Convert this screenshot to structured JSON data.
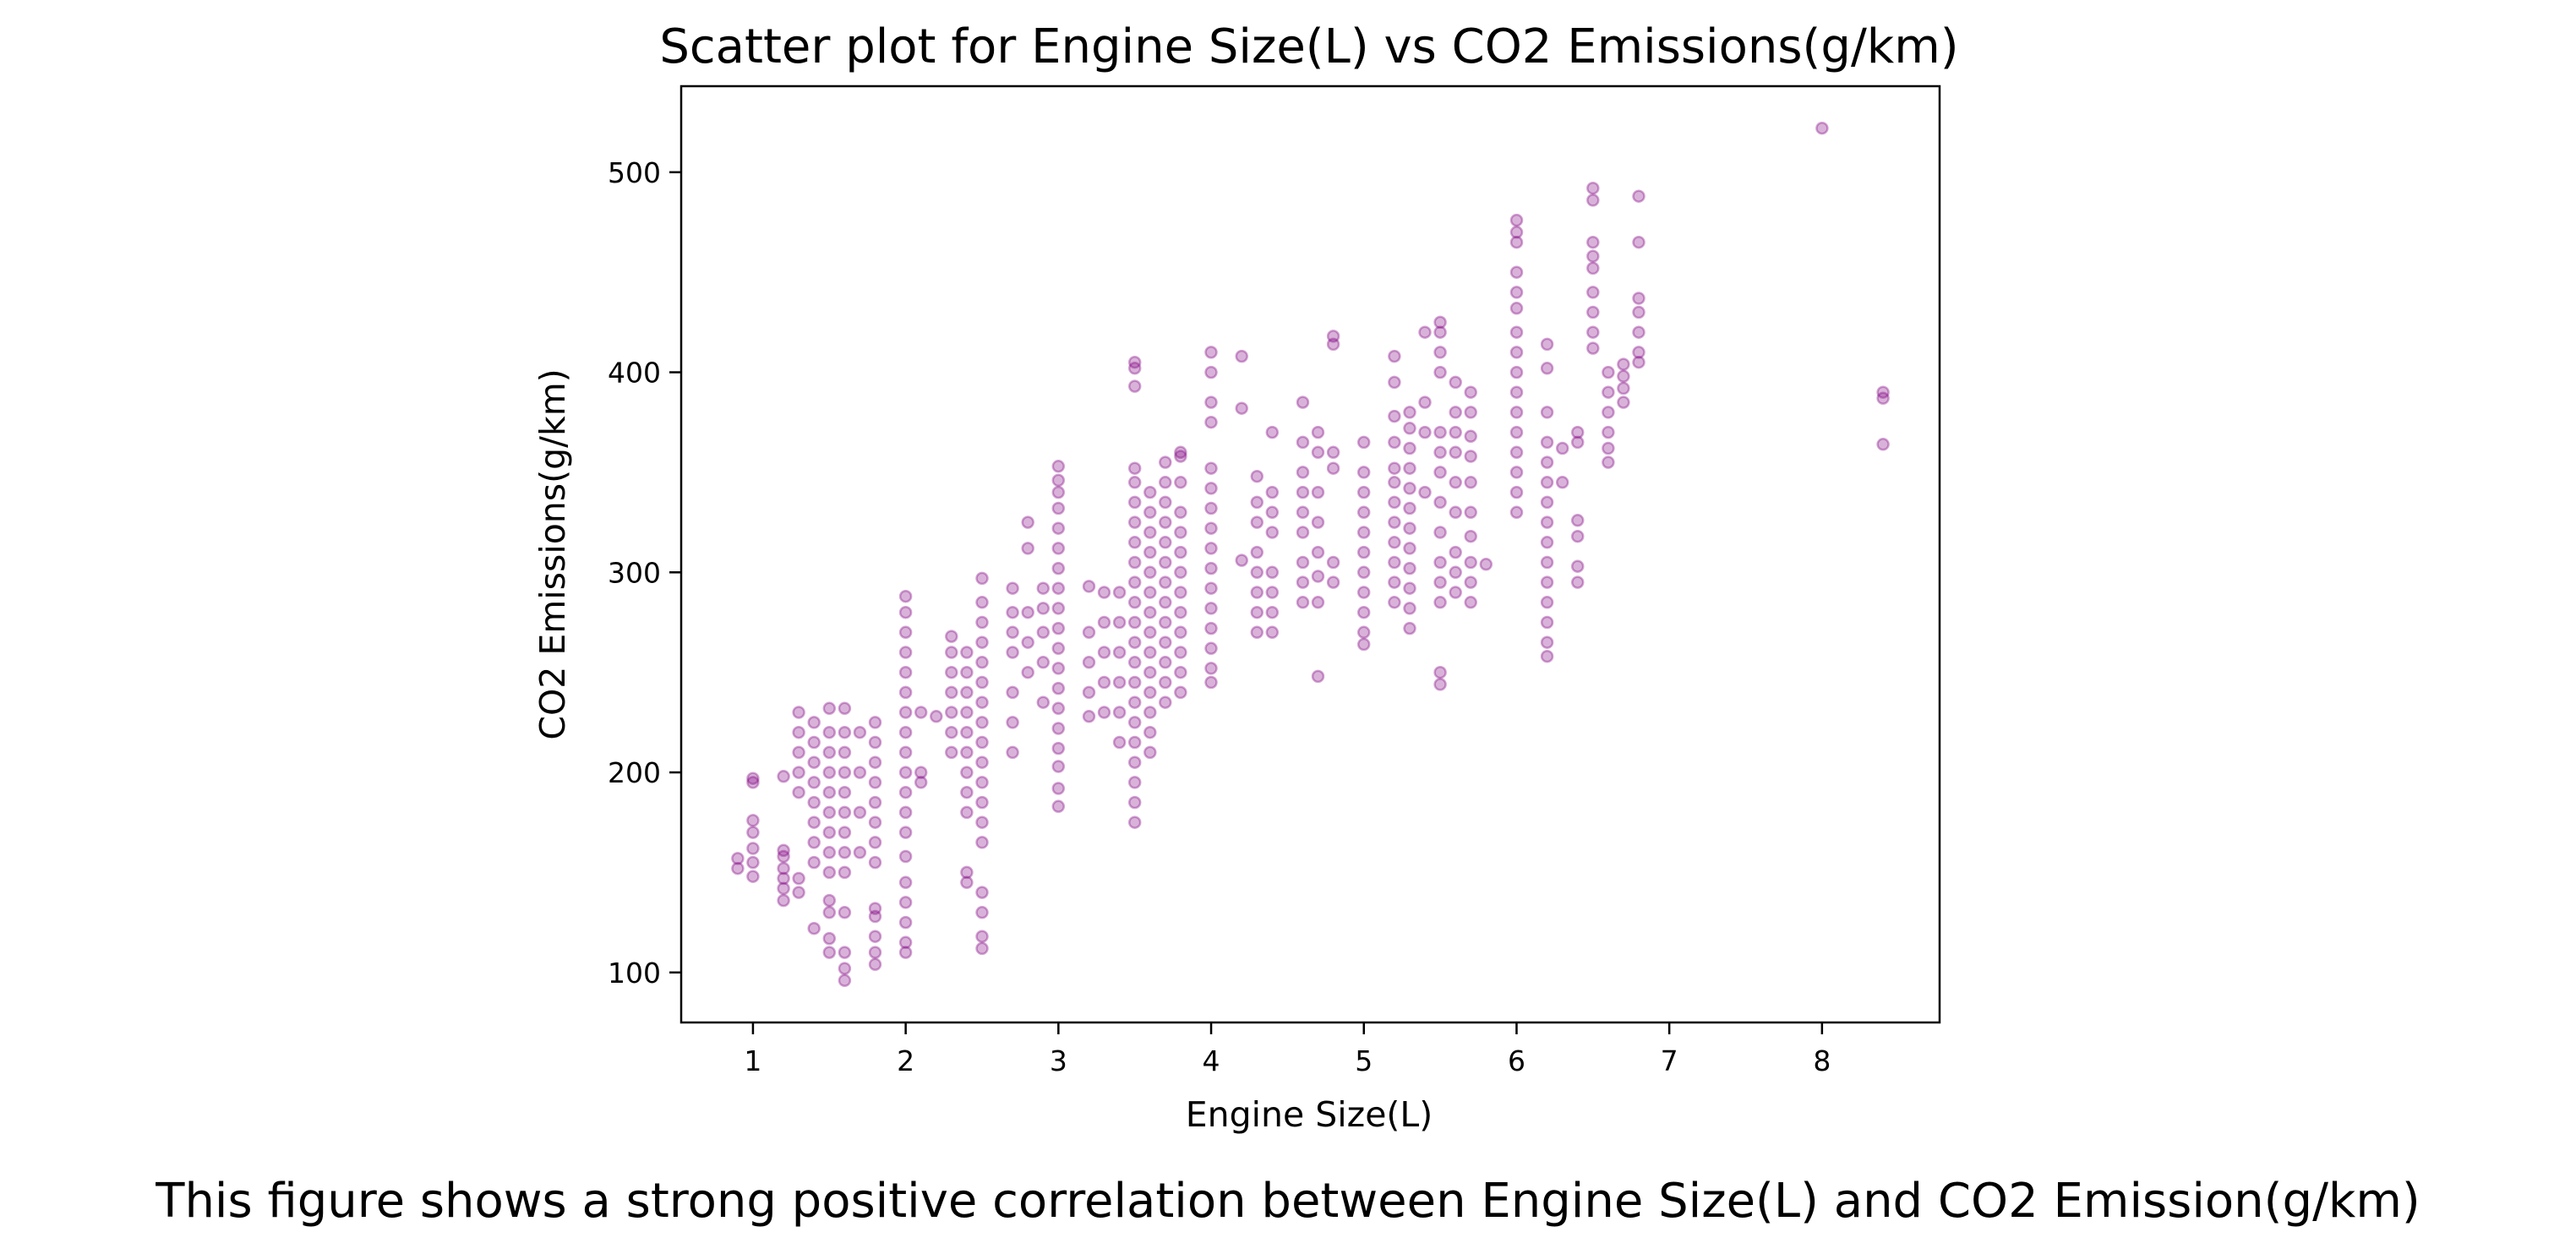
{
  "chart_data": {
    "type": "scatter",
    "title": "Scatter plot for Engine Size(L) vs CO2 Emissions(g/km)",
    "xlabel": "Engine Size(L)",
    "ylabel": "CO2 Emissions(g/km)",
    "caption": "This figure shows a strong positive correlation between Engine Size(L) and CO2 Emission(g/km)",
    "xlim": [
      0.53,
      8.77
    ],
    "ylim": [
      75,
      543
    ],
    "xticks": [
      1,
      2,
      3,
      4,
      5,
      6,
      7,
      8
    ],
    "yticks": [
      100,
      200,
      300,
      400,
      500
    ],
    "marker_color": "#800080",
    "marker_alpha": 0.35,
    "grid": false,
    "points": [
      [
        0.9,
        152
      ],
      [
        0.9,
        157
      ],
      [
        1.0,
        148
      ],
      [
        1.0,
        155
      ],
      [
        1.0,
        162
      ],
      [
        1.0,
        170
      ],
      [
        1.0,
        176
      ],
      [
        1.0,
        195
      ],
      [
        1.0,
        197
      ],
      [
        1.2,
        136
      ],
      [
        1.2,
        142
      ],
      [
        1.2,
        147
      ],
      [
        1.2,
        152
      ],
      [
        1.2,
        158
      ],
      [
        1.2,
        161
      ],
      [
        1.2,
        198
      ],
      [
        1.3,
        140
      ],
      [
        1.3,
        147
      ],
      [
        1.3,
        190
      ],
      [
        1.3,
        200
      ],
      [
        1.3,
        210
      ],
      [
        1.3,
        220
      ],
      [
        1.3,
        230
      ],
      [
        1.4,
        122
      ],
      [
        1.4,
        155
      ],
      [
        1.4,
        165
      ],
      [
        1.4,
        175
      ],
      [
        1.4,
        185
      ],
      [
        1.4,
        195
      ],
      [
        1.4,
        205
      ],
      [
        1.4,
        215
      ],
      [
        1.4,
        225
      ],
      [
        1.5,
        110
      ],
      [
        1.5,
        117
      ],
      [
        1.5,
        130
      ],
      [
        1.5,
        136
      ],
      [
        1.5,
        150
      ],
      [
        1.5,
        160
      ],
      [
        1.5,
        170
      ],
      [
        1.5,
        180
      ],
      [
        1.5,
        190
      ],
      [
        1.5,
        200
      ],
      [
        1.5,
        210
      ],
      [
        1.5,
        220
      ],
      [
        1.5,
        232
      ],
      [
        1.6,
        96
      ],
      [
        1.6,
        102
      ],
      [
        1.6,
        110
      ],
      [
        1.6,
        130
      ],
      [
        1.6,
        150
      ],
      [
        1.6,
        160
      ],
      [
        1.6,
        170
      ],
      [
        1.6,
        180
      ],
      [
        1.6,
        190
      ],
      [
        1.6,
        200
      ],
      [
        1.6,
        210
      ],
      [
        1.6,
        220
      ],
      [
        1.6,
        232
      ],
      [
        1.7,
        160
      ],
      [
        1.7,
        180
      ],
      [
        1.7,
        200
      ],
      [
        1.7,
        220
      ],
      [
        1.8,
        104
      ],
      [
        1.8,
        110
      ],
      [
        1.8,
        118
      ],
      [
        1.8,
        128
      ],
      [
        1.8,
        132
      ],
      [
        1.8,
        155
      ],
      [
        1.8,
        165
      ],
      [
        1.8,
        175
      ],
      [
        1.8,
        185
      ],
      [
        1.8,
        195
      ],
      [
        1.8,
        205
      ],
      [
        1.8,
        215
      ],
      [
        1.8,
        225
      ],
      [
        2.0,
        110
      ],
      [
        2.0,
        115
      ],
      [
        2.0,
        125
      ],
      [
        2.0,
        135
      ],
      [
        2.0,
        145
      ],
      [
        2.0,
        158
      ],
      [
        2.0,
        170
      ],
      [
        2.0,
        180
      ],
      [
        2.0,
        190
      ],
      [
        2.0,
        200
      ],
      [
        2.0,
        210
      ],
      [
        2.0,
        220
      ],
      [
        2.0,
        230
      ],
      [
        2.0,
        240
      ],
      [
        2.0,
        250
      ],
      [
        2.0,
        260
      ],
      [
        2.0,
        270
      ],
      [
        2.0,
        280
      ],
      [
        2.0,
        288
      ],
      [
        2.1,
        195
      ],
      [
        2.1,
        200
      ],
      [
        2.1,
        230
      ],
      [
        2.2,
        228
      ],
      [
        2.3,
        210
      ],
      [
        2.3,
        220
      ],
      [
        2.3,
        230
      ],
      [
        2.3,
        240
      ],
      [
        2.3,
        250
      ],
      [
        2.3,
        260
      ],
      [
        2.3,
        268
      ],
      [
        2.4,
        145
      ],
      [
        2.4,
        150
      ],
      [
        2.4,
        180
      ],
      [
        2.4,
        190
      ],
      [
        2.4,
        200
      ],
      [
        2.4,
        210
      ],
      [
        2.4,
        220
      ],
      [
        2.4,
        230
      ],
      [
        2.4,
        240
      ],
      [
        2.4,
        250
      ],
      [
        2.4,
        260
      ],
      [
        2.5,
        112
      ],
      [
        2.5,
        118
      ],
      [
        2.5,
        130
      ],
      [
        2.5,
        140
      ],
      [
        2.5,
        165
      ],
      [
        2.5,
        175
      ],
      [
        2.5,
        185
      ],
      [
        2.5,
        195
      ],
      [
        2.5,
        205
      ],
      [
        2.5,
        215
      ],
      [
        2.5,
        225
      ],
      [
        2.5,
        235
      ],
      [
        2.5,
        245
      ],
      [
        2.5,
        255
      ],
      [
        2.5,
        265
      ],
      [
        2.5,
        275
      ],
      [
        2.5,
        285
      ],
      [
        2.5,
        297
      ],
      [
        2.7,
        210
      ],
      [
        2.7,
        225
      ],
      [
        2.7,
        240
      ],
      [
        2.7,
        260
      ],
      [
        2.7,
        270
      ],
      [
        2.7,
        280
      ],
      [
        2.7,
        292
      ],
      [
        2.8,
        250
      ],
      [
        2.8,
        265
      ],
      [
        2.8,
        280
      ],
      [
        2.8,
        312
      ],
      [
        2.8,
        325
      ],
      [
        2.9,
        235
      ],
      [
        2.9,
        255
      ],
      [
        2.9,
        270
      ],
      [
        2.9,
        282
      ],
      [
        2.9,
        292
      ],
      [
        3.0,
        183
      ],
      [
        3.0,
        192
      ],
      [
        3.0,
        203
      ],
      [
        3.0,
        212
      ],
      [
        3.0,
        222
      ],
      [
        3.0,
        232
      ],
      [
        3.0,
        242
      ],
      [
        3.0,
        252
      ],
      [
        3.0,
        262
      ],
      [
        3.0,
        272
      ],
      [
        3.0,
        282
      ],
      [
        3.0,
        292
      ],
      [
        3.0,
        302
      ],
      [
        3.0,
        312
      ],
      [
        3.0,
        322
      ],
      [
        3.0,
        332
      ],
      [
        3.0,
        340
      ],
      [
        3.0,
        346
      ],
      [
        3.0,
        353
      ],
      [
        3.2,
        228
      ],
      [
        3.2,
        240
      ],
      [
        3.2,
        255
      ],
      [
        3.2,
        270
      ],
      [
        3.2,
        293
      ],
      [
        3.3,
        230
      ],
      [
        3.3,
        245
      ],
      [
        3.3,
        260
      ],
      [
        3.3,
        275
      ],
      [
        3.3,
        290
      ],
      [
        3.4,
        215
      ],
      [
        3.4,
        230
      ],
      [
        3.4,
        245
      ],
      [
        3.4,
        260
      ],
      [
        3.4,
        275
      ],
      [
        3.4,
        290
      ],
      [
        3.5,
        175
      ],
      [
        3.5,
        185
      ],
      [
        3.5,
        195
      ],
      [
        3.5,
        205
      ],
      [
        3.5,
        215
      ],
      [
        3.5,
        225
      ],
      [
        3.5,
        235
      ],
      [
        3.5,
        245
      ],
      [
        3.5,
        255
      ],
      [
        3.5,
        265
      ],
      [
        3.5,
        275
      ],
      [
        3.5,
        285
      ],
      [
        3.5,
        295
      ],
      [
        3.5,
        305
      ],
      [
        3.5,
        315
      ],
      [
        3.5,
        325
      ],
      [
        3.5,
        335
      ],
      [
        3.5,
        345
      ],
      [
        3.5,
        352
      ],
      [
        3.5,
        393
      ],
      [
        3.5,
        402
      ],
      [
        3.5,
        405
      ],
      [
        3.6,
        210
      ],
      [
        3.6,
        220
      ],
      [
        3.6,
        230
      ],
      [
        3.6,
        240
      ],
      [
        3.6,
        250
      ],
      [
        3.6,
        260
      ],
      [
        3.6,
        270
      ],
      [
        3.6,
        280
      ],
      [
        3.6,
        290
      ],
      [
        3.6,
        300
      ],
      [
        3.6,
        310
      ],
      [
        3.6,
        320
      ],
      [
        3.6,
        330
      ],
      [
        3.6,
        340
      ],
      [
        3.7,
        235
      ],
      [
        3.7,
        245
      ],
      [
        3.7,
        255
      ],
      [
        3.7,
        265
      ],
      [
        3.7,
        275
      ],
      [
        3.7,
        285
      ],
      [
        3.7,
        295
      ],
      [
        3.7,
        305
      ],
      [
        3.7,
        315
      ],
      [
        3.7,
        325
      ],
      [
        3.7,
        335
      ],
      [
        3.7,
        345
      ],
      [
        3.7,
        355
      ],
      [
        3.8,
        240
      ],
      [
        3.8,
        250
      ],
      [
        3.8,
        260
      ],
      [
        3.8,
        270
      ],
      [
        3.8,
        280
      ],
      [
        3.8,
        290
      ],
      [
        3.8,
        300
      ],
      [
        3.8,
        310
      ],
      [
        3.8,
        320
      ],
      [
        3.8,
        330
      ],
      [
        3.8,
        345
      ],
      [
        3.8,
        358
      ],
      [
        3.8,
        360
      ],
      [
        4.0,
        245
      ],
      [
        4.0,
        252
      ],
      [
        4.0,
        262
      ],
      [
        4.0,
        272
      ],
      [
        4.0,
        282
      ],
      [
        4.0,
        292
      ],
      [
        4.0,
        302
      ],
      [
        4.0,
        312
      ],
      [
        4.0,
        322
      ],
      [
        4.0,
        332
      ],
      [
        4.0,
        342
      ],
      [
        4.0,
        352
      ],
      [
        4.0,
        375
      ],
      [
        4.0,
        385
      ],
      [
        4.0,
        400
      ],
      [
        4.0,
        410
      ],
      [
        4.2,
        306
      ],
      [
        4.2,
        382
      ],
      [
        4.2,
        408
      ],
      [
        4.3,
        270
      ],
      [
        4.3,
        280
      ],
      [
        4.3,
        290
      ],
      [
        4.3,
        300
      ],
      [
        4.3,
        310
      ],
      [
        4.3,
        325
      ],
      [
        4.3,
        335
      ],
      [
        4.3,
        348
      ],
      [
        4.4,
        270
      ],
      [
        4.4,
        280
      ],
      [
        4.4,
        290
      ],
      [
        4.4,
        300
      ],
      [
        4.4,
        320
      ],
      [
        4.4,
        330
      ],
      [
        4.4,
        340
      ],
      [
        4.4,
        370
      ],
      [
        4.6,
        285
      ],
      [
        4.6,
        295
      ],
      [
        4.6,
        305
      ],
      [
        4.6,
        320
      ],
      [
        4.6,
        330
      ],
      [
        4.6,
        340
      ],
      [
        4.6,
        350
      ],
      [
        4.6,
        365
      ],
      [
        4.6,
        385
      ],
      [
        4.7,
        248
      ],
      [
        4.7,
        285
      ],
      [
        4.7,
        298
      ],
      [
        4.7,
        310
      ],
      [
        4.7,
        325
      ],
      [
        4.7,
        340
      ],
      [
        4.7,
        360
      ],
      [
        4.7,
        370
      ],
      [
        4.8,
        295
      ],
      [
        4.8,
        305
      ],
      [
        4.8,
        352
      ],
      [
        4.8,
        360
      ],
      [
        4.8,
        414
      ],
      [
        4.8,
        418
      ],
      [
        5.0,
        264
      ],
      [
        5.0,
        270
      ],
      [
        5.0,
        280
      ],
      [
        5.0,
        290
      ],
      [
        5.0,
        300
      ],
      [
        5.0,
        310
      ],
      [
        5.0,
        320
      ],
      [
        5.0,
        330
      ],
      [
        5.0,
        340
      ],
      [
        5.0,
        350
      ],
      [
        5.0,
        365
      ],
      [
        5.2,
        285
      ],
      [
        5.2,
        295
      ],
      [
        5.2,
        305
      ],
      [
        5.2,
        315
      ],
      [
        5.2,
        325
      ],
      [
        5.2,
        335
      ],
      [
        5.2,
        345
      ],
      [
        5.2,
        352
      ],
      [
        5.2,
        365
      ],
      [
        5.2,
        378
      ],
      [
        5.2,
        395
      ],
      [
        5.2,
        408
      ],
      [
        5.3,
        272
      ],
      [
        5.3,
        282
      ],
      [
        5.3,
        292
      ],
      [
        5.3,
        302
      ],
      [
        5.3,
        312
      ],
      [
        5.3,
        322
      ],
      [
        5.3,
        332
      ],
      [
        5.3,
        342
      ],
      [
        5.3,
        352
      ],
      [
        5.3,
        362
      ],
      [
        5.3,
        372
      ],
      [
        5.3,
        380
      ],
      [
        5.4,
        340
      ],
      [
        5.4,
        370
      ],
      [
        5.4,
        385
      ],
      [
        5.4,
        420
      ],
      [
        5.5,
        244
      ],
      [
        5.5,
        250
      ],
      [
        5.5,
        285
      ],
      [
        5.5,
        295
      ],
      [
        5.5,
        305
      ],
      [
        5.5,
        320
      ],
      [
        5.5,
        335
      ],
      [
        5.5,
        350
      ],
      [
        5.5,
        360
      ],
      [
        5.5,
        370
      ],
      [
        5.5,
        400
      ],
      [
        5.5,
        410
      ],
      [
        5.5,
        420
      ],
      [
        5.5,
        425
      ],
      [
        5.6,
        290
      ],
      [
        5.6,
        300
      ],
      [
        5.6,
        310
      ],
      [
        5.6,
        330
      ],
      [
        5.6,
        345
      ],
      [
        5.6,
        360
      ],
      [
        5.6,
        370
      ],
      [
        5.6,
        380
      ],
      [
        5.6,
        395
      ],
      [
        5.7,
        285
      ],
      [
        5.7,
        295
      ],
      [
        5.7,
        305
      ],
      [
        5.7,
        318
      ],
      [
        5.7,
        330
      ],
      [
        5.7,
        345
      ],
      [
        5.7,
        358
      ],
      [
        5.7,
        368
      ],
      [
        5.7,
        380
      ],
      [
        5.7,
        390
      ],
      [
        5.8,
        304
      ],
      [
        6.0,
        330
      ],
      [
        6.0,
        340
      ],
      [
        6.0,
        350
      ],
      [
        6.0,
        360
      ],
      [
        6.0,
        370
      ],
      [
        6.0,
        380
      ],
      [
        6.0,
        390
      ],
      [
        6.0,
        400
      ],
      [
        6.0,
        410
      ],
      [
        6.0,
        420
      ],
      [
        6.0,
        432
      ],
      [
        6.0,
        440
      ],
      [
        6.0,
        450
      ],
      [
        6.0,
        465
      ],
      [
        6.0,
        470
      ],
      [
        6.0,
        476
      ],
      [
        6.2,
        258
      ],
      [
        6.2,
        265
      ],
      [
        6.2,
        275
      ],
      [
        6.2,
        285
      ],
      [
        6.2,
        295
      ],
      [
        6.2,
        305
      ],
      [
        6.2,
        315
      ],
      [
        6.2,
        325
      ],
      [
        6.2,
        335
      ],
      [
        6.2,
        345
      ],
      [
        6.2,
        355
      ],
      [
        6.2,
        365
      ],
      [
        6.2,
        380
      ],
      [
        6.2,
        402
      ],
      [
        6.2,
        414
      ],
      [
        6.3,
        345
      ],
      [
        6.3,
        362
      ],
      [
        6.4,
        295
      ],
      [
        6.4,
        303
      ],
      [
        6.4,
        318
      ],
      [
        6.4,
        326
      ],
      [
        6.4,
        365
      ],
      [
        6.4,
        370
      ],
      [
        6.5,
        412
      ],
      [
        6.5,
        420
      ],
      [
        6.5,
        430
      ],
      [
        6.5,
        440
      ],
      [
        6.5,
        452
      ],
      [
        6.5,
        458
      ],
      [
        6.5,
        465
      ],
      [
        6.5,
        486
      ],
      [
        6.5,
        492
      ],
      [
        6.6,
        355
      ],
      [
        6.6,
        362
      ],
      [
        6.6,
        370
      ],
      [
        6.6,
        380
      ],
      [
        6.6,
        390
      ],
      [
        6.6,
        400
      ],
      [
        6.7,
        385
      ],
      [
        6.7,
        392
      ],
      [
        6.7,
        398
      ],
      [
        6.7,
        404
      ],
      [
        6.8,
        405
      ],
      [
        6.8,
        410
      ],
      [
        6.8,
        420
      ],
      [
        6.8,
        430
      ],
      [
        6.8,
        437
      ],
      [
        6.8,
        465
      ],
      [
        6.8,
        488
      ],
      [
        8.0,
        522
      ],
      [
        8.4,
        364
      ],
      [
        8.4,
        387
      ],
      [
        8.4,
        390
      ]
    ]
  }
}
